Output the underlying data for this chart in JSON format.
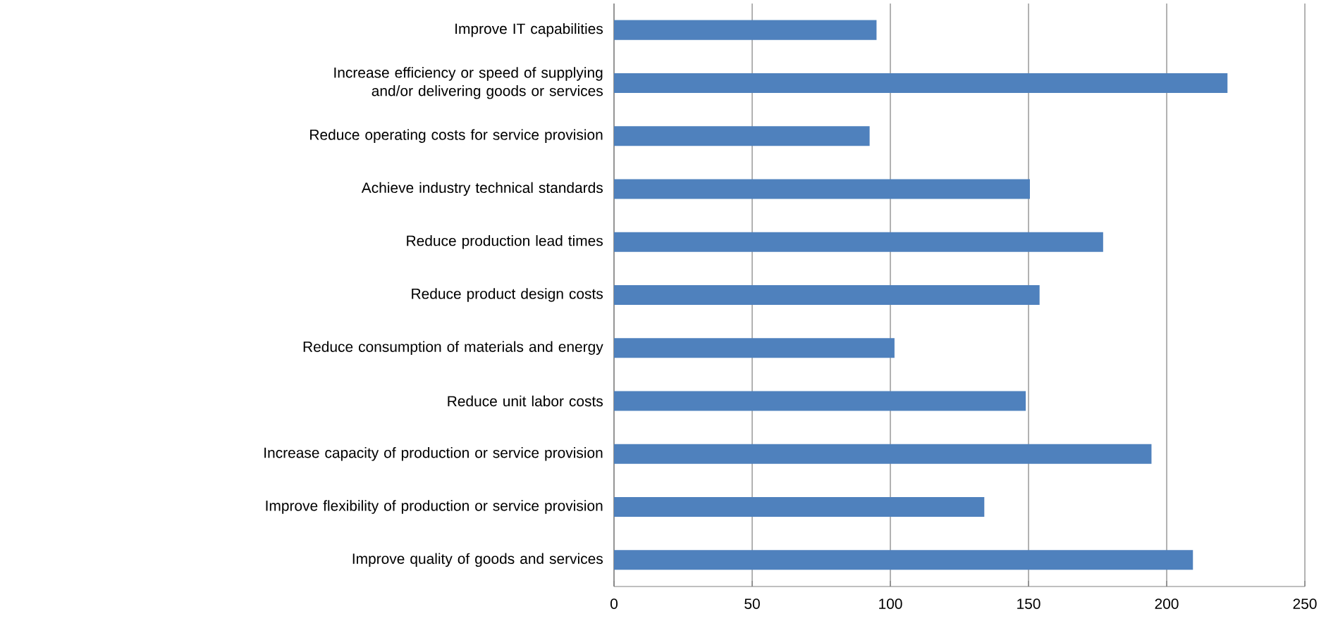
{
  "chart_data": {
    "type": "bar",
    "orientation": "horizontal",
    "categories": [
      "Improve IT capabilities",
      "Increase efficiency or speed of supplying and/or delivering goods or services",
      "Reduce operating costs for service provision",
      "Achieve industry technical standards",
      "Reduce production lead times",
      "Reduce product design costs",
      "Reduce consumption of materials and energy",
      "Reduce unit labor costs",
      "Increase capacity of production or service provision",
      "Improve flexibility of production or service provision",
      "Improve quality of goods and services"
    ],
    "values": [
      95,
      222,
      92.5,
      150.5,
      177,
      154,
      101.5,
      149,
      194.5,
      134,
      209.5
    ],
    "color": "#4f81bd",
    "xlim": [
      0,
      250
    ],
    "xticks": [
      0,
      50,
      100,
      150,
      200,
      250
    ],
    "grid": "x"
  }
}
